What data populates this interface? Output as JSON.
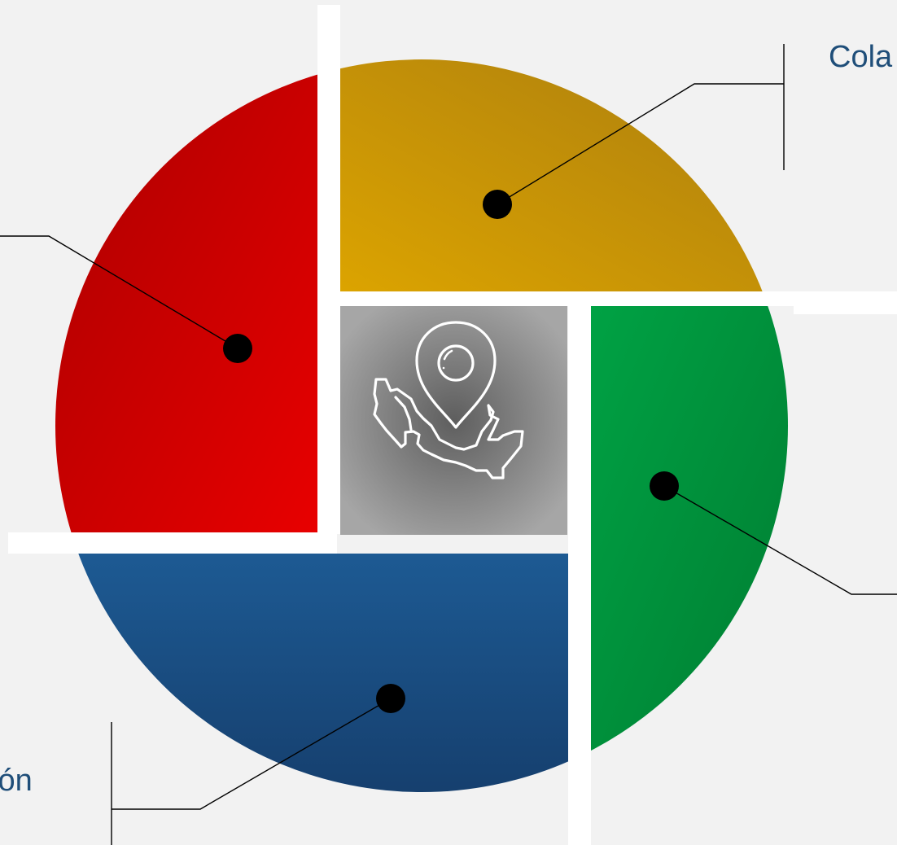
{
  "labels": {
    "top_right": "Cola",
    "bottom_left": "ción"
  },
  "colors": {
    "background": "#f2f2f2",
    "red_segment": "#c00000",
    "gold_segment": "#c8960a",
    "green_segment": "#00963c",
    "blue_segment": "#1b4f87",
    "center_box": "#8c8c8c",
    "label_text": "#1f4e79",
    "separator": "#ffffff",
    "marker": "#000000"
  },
  "center": {
    "icon": "mexico-map-location-pin-icon"
  }
}
